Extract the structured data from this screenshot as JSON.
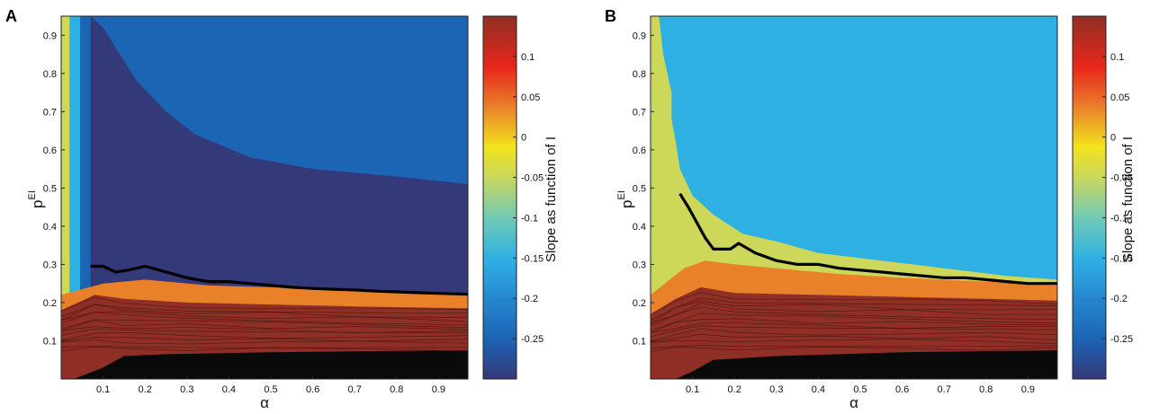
{
  "chart_data": [
    {
      "type": "heatmap",
      "panel_label": "A",
      "xlabel": "α",
      "ylabel": "p",
      "ylabel_sup": "EI",
      "colorbar_label": "Slope as function of I",
      "xlim": [
        0,
        0.97
      ],
      "ylim": [
        0,
        0.95
      ],
      "xticks": [
        "0.1",
        "0.2",
        "0.3",
        "0.4",
        "0.5",
        "0.6",
        "0.7",
        "0.8",
        "0.9"
      ],
      "yticks": [
        "0.1",
        "0.2",
        "0.3",
        "0.4",
        "0.5",
        "0.6",
        "0.7",
        "0.8",
        "0.9"
      ],
      "colorbar_ticks": [
        "0.1",
        "0.05",
        "0",
        "-0.05",
        "-0.1",
        "-0.15",
        "-0.2",
        "-0.25"
      ],
      "colorbar_range": [
        -0.3,
        0.15
      ],
      "level_colors": {
        "positive_dark": "#8f2f25",
        "positive": "#e9802a",
        "zero": "#cdd85a",
        "slight_negative": "#2fb0e2",
        "negative": "#1c64b4",
        "most_negative": "#34397a",
        "contour_black": "#0a0a0a"
      },
      "regions": {
        "yellow_top_edge": [
          [
            0,
            0.95
          ],
          [
            0.02,
            0.95
          ],
          [
            0.045,
            0.9
          ],
          [
            0.05,
            0.8
          ],
          [
            0.04,
            0.7
          ],
          [
            0.06,
            0.6
          ],
          [
            0.1,
            0.45
          ],
          [
            0.2,
            0.35
          ],
          [
            0.35,
            0.3
          ],
          [
            0.6,
            0.27
          ],
          [
            0.8,
            0.26
          ],
          [
            0.97,
            0.26
          ]
        ],
        "cyan_top_edge": [
          [
            0.02,
            0.95
          ],
          [
            0.045,
            0.95
          ],
          [
            0.06,
            0.88
          ],
          [
            0.07,
            0.78
          ],
          [
            0.06,
            0.68
          ],
          [
            0.08,
            0.6
          ],
          [
            0.11,
            0.52
          ],
          [
            0.18,
            0.4
          ],
          [
            0.3,
            0.33
          ],
          [
            0.55,
            0.3
          ],
          [
            0.8,
            0.28
          ],
          [
            0.97,
            0.27
          ]
        ],
        "navy_top_edge": [
          [
            0.045,
            0.95
          ],
          [
            0.07,
            0.95
          ],
          [
            0.09,
            0.85
          ],
          [
            0.1,
            0.75
          ],
          [
            0.12,
            0.65
          ],
          [
            0.15,
            0.55
          ],
          [
            0.2,
            0.47
          ],
          [
            0.3,
            0.42
          ],
          [
            0.5,
            0.37
          ],
          [
            0.7,
            0.33
          ],
          [
            0.97,
            0.3
          ]
        ],
        "purple_top_edge": [
          [
            0.07,
            0.95
          ],
          [
            0.1,
            0.92
          ],
          [
            0.14,
            0.85
          ],
          [
            0.18,
            0.78
          ],
          [
            0.25,
            0.7
          ],
          [
            0.32,
            0.64
          ],
          [
            0.45,
            0.58
          ],
          [
            0.6,
            0.55
          ],
          [
            0.8,
            0.53
          ],
          [
            0.97,
            0.51
          ]
        ],
        "orange_top_edge": [
          [
            0,
            0.22
          ],
          [
            0.1,
            0.25
          ],
          [
            0.2,
            0.26
          ],
          [
            0.35,
            0.245
          ],
          [
            0.5,
            0.24
          ],
          [
            0.7,
            0.235
          ],
          [
            0.97,
            0.225
          ]
        ],
        "red_top_edge": [
          [
            0,
            0.18
          ],
          [
            0.08,
            0.22
          ],
          [
            0.15,
            0.21
          ],
          [
            0.3,
            0.2
          ],
          [
            0.5,
            0.195
          ],
          [
            0.7,
            0.19
          ],
          [
            0.97,
            0.185
          ]
        ],
        "black_top_edge": [
          [
            0.03,
            0
          ],
          [
            0.1,
            0.03
          ],
          [
            0.15,
            0.06
          ],
          [
            0.25,
            0.065
          ],
          [
            0.5,
            0.07
          ],
          [
            0.97,
            0.075
          ]
        ]
      },
      "black_line": {
        "alpha": [
          0.07,
          0.1,
          0.13,
          0.16,
          0.2,
          0.25,
          0.3,
          0.35,
          0.4,
          0.45,
          0.5,
          0.55,
          0.6,
          0.65,
          0.7,
          0.75,
          0.8,
          0.85,
          0.9,
          0.97
        ],
        "p": [
          0.295,
          0.295,
          0.28,
          0.285,
          0.295,
          0.28,
          0.265,
          0.255,
          0.255,
          0.25,
          0.245,
          0.24,
          0.237,
          0.235,
          0.233,
          0.23,
          0.228,
          0.226,
          0.224,
          0.222
        ]
      }
    },
    {
      "type": "heatmap",
      "panel_label": "B",
      "xlabel": "α",
      "ylabel": "p",
      "ylabel_sup": "EI",
      "colorbar_label": "Slope as function of I",
      "xlim": [
        0,
        0.97
      ],
      "ylim": [
        0,
        0.95
      ],
      "xticks": [
        "0.1",
        "0.2",
        "0.3",
        "0.4",
        "0.5",
        "0.6",
        "0.7",
        "0.8",
        "0.9"
      ],
      "yticks": [
        "0.1",
        "0.2",
        "0.3",
        "0.4",
        "0.5",
        "0.6",
        "0.7",
        "0.8",
        "0.9"
      ],
      "colorbar_ticks": [
        "0.1",
        "0.05",
        "0",
        "-0.05",
        "-0.1",
        "-0.15",
        "-0.2",
        "-0.25"
      ],
      "colorbar_range": [
        -0.3,
        0.15
      ],
      "level_colors": {
        "positive_dark": "#8f2f25",
        "positive": "#e9802a",
        "zero": "#cdd85a",
        "slight_negative": "#2fb0e2",
        "contour_black": "#0a0a0a"
      },
      "regions": {
        "yellow_top_edge": [
          [
            0,
            0.95
          ],
          [
            0.02,
            0.95
          ],
          [
            0.03,
            0.85
          ],
          [
            0.05,
            0.75
          ],
          [
            0.05,
            0.68
          ],
          [
            0.06,
            0.62
          ],
          [
            0.07,
            0.55
          ],
          [
            0.1,
            0.48
          ],
          [
            0.15,
            0.43
          ],
          [
            0.22,
            0.38
          ],
          [
            0.3,
            0.36
          ],
          [
            0.4,
            0.33
          ],
          [
            0.55,
            0.31
          ],
          [
            0.7,
            0.29
          ],
          [
            0.85,
            0.27
          ],
          [
            0.97,
            0.26
          ]
        ],
        "orange_top_edge": [
          [
            0,
            0.22
          ],
          [
            0.08,
            0.29
          ],
          [
            0.13,
            0.31
          ],
          [
            0.2,
            0.3
          ],
          [
            0.3,
            0.29
          ],
          [
            0.45,
            0.275
          ],
          [
            0.6,
            0.265
          ],
          [
            0.8,
            0.255
          ],
          [
            0.97,
            0.245
          ]
        ],
        "red_top_edge": [
          [
            0,
            0.17
          ],
          [
            0.06,
            0.21
          ],
          [
            0.12,
            0.24
          ],
          [
            0.2,
            0.225
          ],
          [
            0.4,
            0.22
          ],
          [
            0.6,
            0.215
          ],
          [
            0.8,
            0.21
          ],
          [
            0.97,
            0.205
          ]
        ],
        "black_top_edge": [
          [
            0.06,
            0
          ],
          [
            0.1,
            0.02
          ],
          [
            0.15,
            0.05
          ],
          [
            0.3,
            0.06
          ],
          [
            0.6,
            0.07
          ],
          [
            0.97,
            0.075
          ]
        ]
      },
      "black_line": {
        "alpha": [
          0.07,
          0.09,
          0.11,
          0.13,
          0.15,
          0.17,
          0.19,
          0.21,
          0.25,
          0.3,
          0.35,
          0.4,
          0.45,
          0.5,
          0.55,
          0.6,
          0.65,
          0.7,
          0.75,
          0.8,
          0.85,
          0.9,
          0.97
        ],
        "p": [
          0.485,
          0.45,
          0.41,
          0.37,
          0.34,
          0.34,
          0.34,
          0.355,
          0.33,
          0.31,
          0.3,
          0.3,
          0.29,
          0.285,
          0.28,
          0.275,
          0.27,
          0.265,
          0.265,
          0.26,
          0.255,
          0.25,
          0.25
        ]
      }
    }
  ]
}
